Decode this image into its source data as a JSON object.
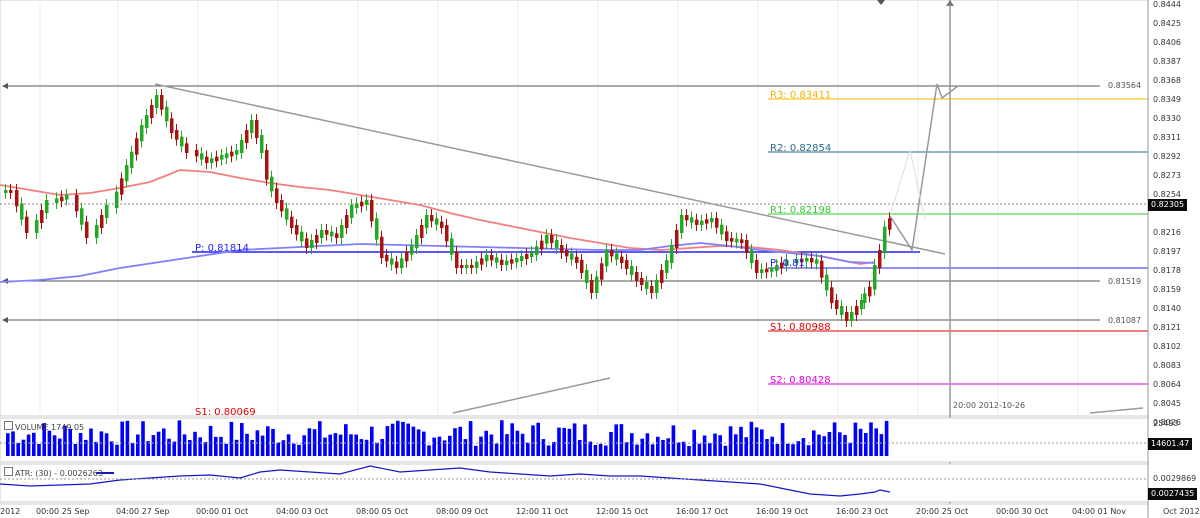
{
  "main_chart": {
    "pivots": {
      "R3": "R3: 0.83411",
      "R2": "R2: 0.82854",
      "R1": "R1: 0.82198",
      "P": "P: 0.81814",
      "P2": "P: 0.81",
      "S1": "S1: 0.80988",
      "S2": "S2: 0.80428",
      "S1_old": "S1: 0.80069"
    },
    "h_lines": {
      "upper": "0.83564",
      "middle": "0.81519",
      "lower": "0.81087"
    },
    "price_tag": "0.82305",
    "vertical_marker": "20:00 2012-10-26",
    "y_ticks": [
      "0.8444",
      "0.8425",
      "0.8406",
      "0.8387",
      "0.8368",
      "0.8349",
      "0.8330",
      "0.8311",
      "0.8292",
      "0.8273",
      "0.8254",
      "0.8216",
      "0.8197",
      "0.8178",
      "0.8159",
      "0.8140",
      "0.8121",
      "0.8102",
      "0.8083",
      "0.8064",
      "0.8045",
      "0.8026"
    ]
  },
  "volume_panel": {
    "title": "VOLUME",
    "value": "1749.05",
    "y_tick": "25493",
    "tag": "14601.47"
  },
  "atr_panel": {
    "title": "ATR: (30)",
    "value": "0.0026263",
    "y_tick": "0.0029869",
    "tag": "0.0027435"
  },
  "x_axis": [
    {
      "label": "2012"
    },
    {
      "label": "00:00 25 Sep"
    },
    {
      "label": "04:00 27 Sep"
    },
    {
      "label": "00:00 01 Oct"
    },
    {
      "label": "04:00 03 Oct"
    },
    {
      "label": "08:00 05 Oct"
    },
    {
      "label": "08:00 09 Oct"
    },
    {
      "label": "12:00 11 Oct"
    },
    {
      "label": "12:00 15 Oct"
    },
    {
      "label": "16:00 17 Oct"
    },
    {
      "label": "16:00 19 Oct"
    },
    {
      "label": "16:00 23 Oct"
    },
    {
      "label": "20:00 25 Oct"
    },
    {
      "label": "00:00 30 Oct"
    },
    {
      "label": "04:00 01 Nov"
    },
    {
      "label": "Oct 2012"
    }
  ],
  "colors": {
    "bull": "#22aa22",
    "bear": "#aa1111",
    "ma_fast": "#f08080",
    "ma_slow": "#8080ff",
    "volume": "#0000ff",
    "atr": "#1515c8",
    "R3": "#f0b400",
    "R2": "#2a6a8c",
    "R1": "#33cc33",
    "P": "#2222ff",
    "S1": "#e00000",
    "S2": "#e000e0"
  }
}
